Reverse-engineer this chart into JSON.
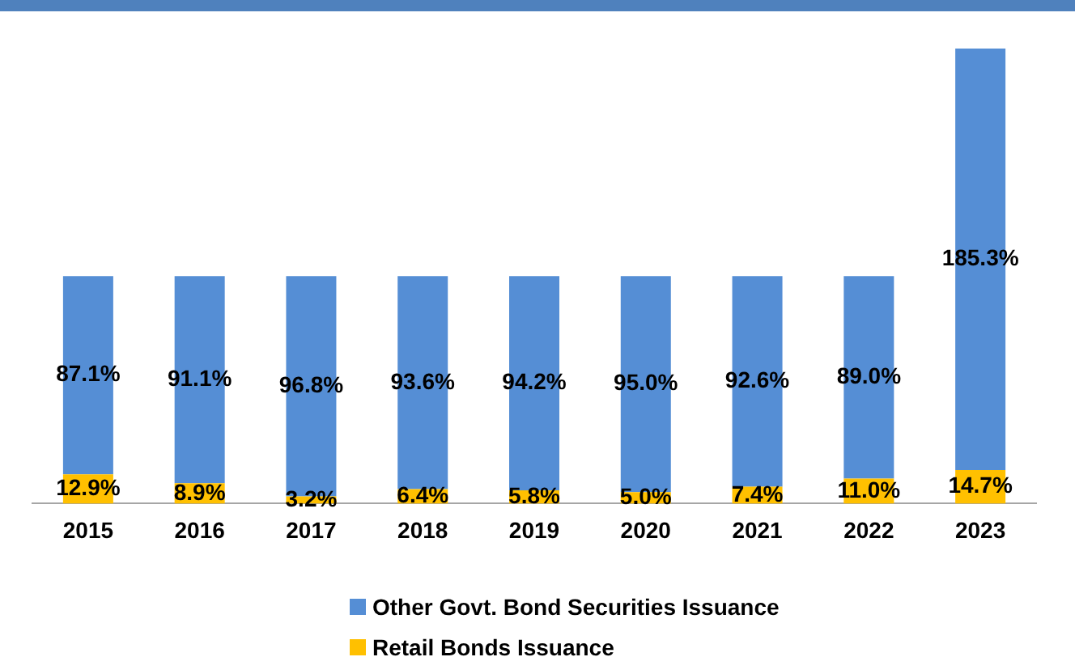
{
  "chart_data": {
    "type": "bar",
    "stacked": true,
    "categories": [
      "2015",
      "2016",
      "2017",
      "2018",
      "2019",
      "2020",
      "2021",
      "2022",
      "2023"
    ],
    "series": [
      {
        "name": "Retail Bonds Issuance",
        "color": "#ffc000",
        "values": [
          12.9,
          8.9,
          3.2,
          6.4,
          5.8,
          5.0,
          7.4,
          11.0,
          14.7
        ],
        "value_labels": [
          "12.9%",
          "8.9%",
          "3.2%",
          "6.4%",
          "5.8%",
          "5.0%",
          "7.4%",
          "11.0%",
          "14.7%"
        ]
      },
      {
        "name": "Other Govt. Bond Securities Issuance",
        "color": "#558ed5",
        "values": [
          87.1,
          91.1,
          96.8,
          93.6,
          94.2,
          95.0,
          92.6,
          89.0,
          185.3
        ],
        "value_labels": [
          "87.1%",
          "91.1%",
          "96.8%",
          "93.6%",
          "94.2%",
          "95.0%",
          "92.6%",
          "89.0%",
          "185.3%"
        ]
      }
    ],
    "legend": "bottom",
    "grid": false,
    "tick_labels": "x"
  }
}
